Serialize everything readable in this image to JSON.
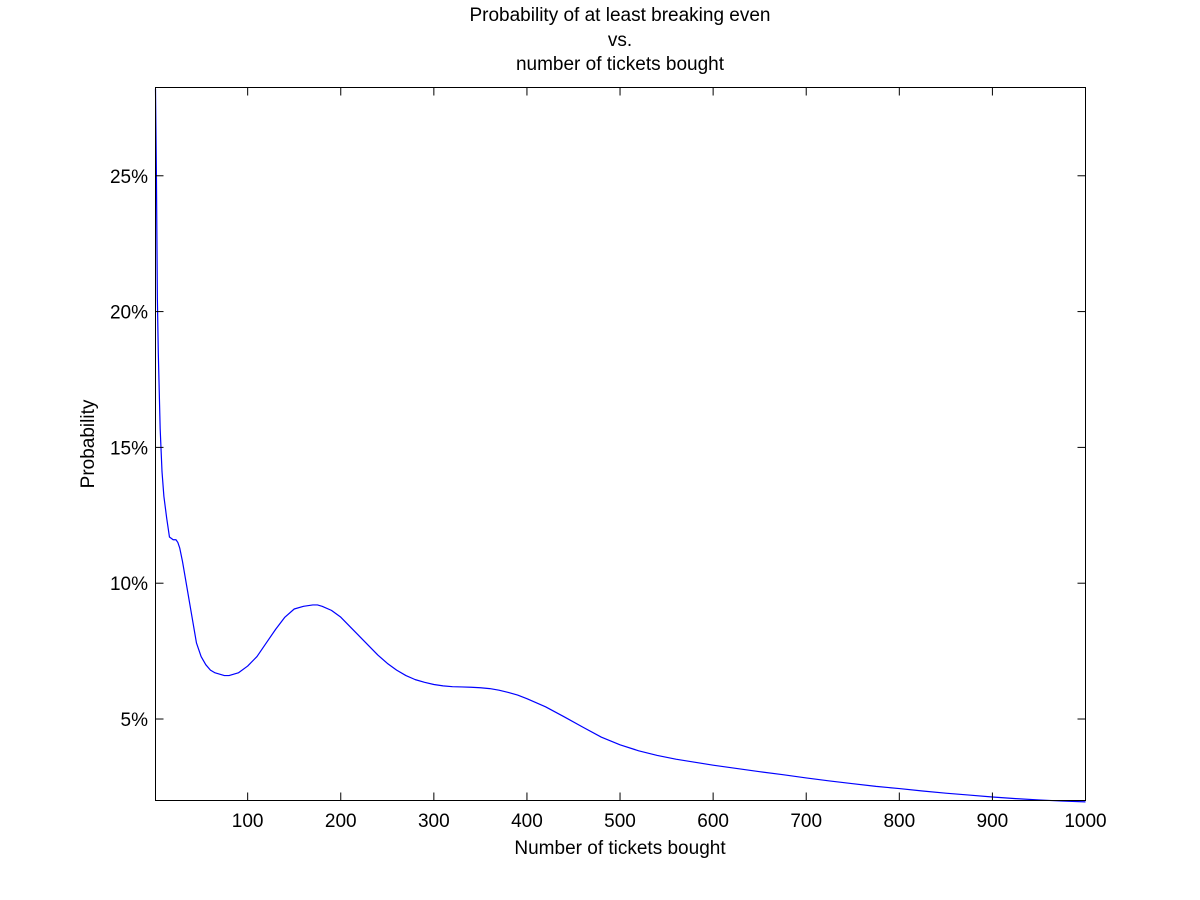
{
  "chart_data": {
    "type": "line",
    "title_lines": [
      "Probability of at least breaking even",
      "vs.",
      "number of tickets bought"
    ],
    "xlabel": "Number of tickets bought",
    "ylabel": "Probability",
    "xlim": [
      1,
      1000
    ],
    "ylim": [
      0.02,
      0.2825
    ],
    "x_ticks": [
      100,
      200,
      300,
      400,
      500,
      600,
      700,
      800,
      900,
      1000
    ],
    "x_tick_labels": [
      "100",
      "200",
      "300",
      "400",
      "500",
      "600",
      "700",
      "800",
      "900",
      "1000"
    ],
    "y_ticks": [
      0.05,
      0.1,
      0.15,
      0.2,
      0.25
    ],
    "y_tick_labels": [
      "5%",
      "10%",
      "15%",
      "20%",
      "25%"
    ],
    "grid": false,
    "line_color": "#0000ff",
    "series": [
      {
        "x": [
          1,
          2,
          3,
          4,
          6,
          8,
          10,
          13,
          16,
          20,
          23,
          25,
          27,
          30,
          35,
          40,
          45,
          50,
          55,
          60,
          65,
          70,
          75,
          80,
          90,
          100,
          110,
          120,
          130,
          140,
          150,
          160,
          170,
          175,
          180,
          190,
          200,
          210,
          220,
          230,
          240,
          250,
          260,
          270,
          280,
          290,
          300,
          310,
          320,
          330,
          340,
          350,
          360,
          370,
          380,
          390,
          400,
          420,
          440,
          460,
          480,
          500,
          520,
          540,
          560,
          580,
          600,
          625,
          650,
          675,
          700,
          725,
          750,
          775,
          800,
          825,
          850,
          875,
          900,
          925,
          950,
          975,
          1000
        ],
        "y": [
          0.282,
          0.25,
          0.205,
          0.185,
          0.157,
          0.141,
          0.132,
          0.124,
          0.117,
          0.116,
          0.116,
          0.115,
          0.113,
          0.108,
          0.098,
          0.088,
          0.078,
          0.073,
          0.07,
          0.068,
          0.067,
          0.0665,
          0.066,
          0.066,
          0.067,
          0.0695,
          0.073,
          0.078,
          0.083,
          0.0875,
          0.0905,
          0.0915,
          0.092,
          0.092,
          0.0915,
          0.09,
          0.0875,
          0.084,
          0.0805,
          0.077,
          0.0735,
          0.0705,
          0.068,
          0.066,
          0.0645,
          0.0635,
          0.0627,
          0.0622,
          0.0619,
          0.0618,
          0.0617,
          0.0615,
          0.0612,
          0.0606,
          0.0598,
          0.0588,
          0.0575,
          0.0545,
          0.0508,
          0.047,
          0.0433,
          0.0405,
          0.0383,
          0.0366,
          0.0352,
          0.0341,
          0.033,
          0.0318,
          0.0306,
          0.0295,
          0.0283,
          0.0272,
          0.0262,
          0.0252,
          0.0244,
          0.0235,
          0.0227,
          0.022,
          0.0213,
          0.0207,
          0.0202,
          0.0198,
          0.0195
        ]
      }
    ]
  }
}
